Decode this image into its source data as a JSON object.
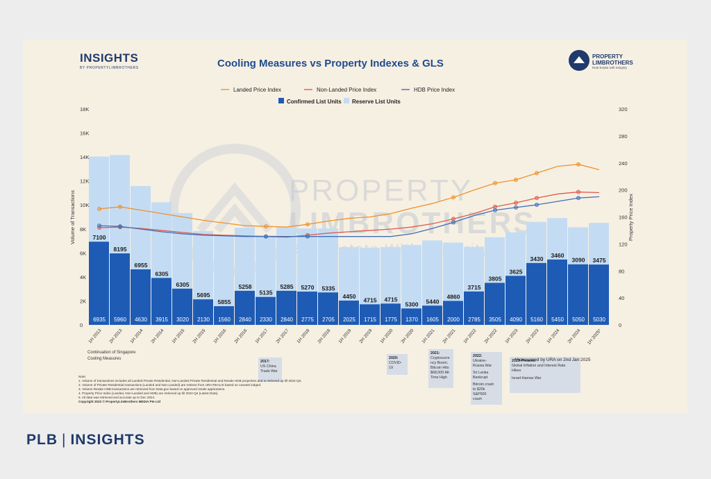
{
  "header": {
    "brand_left": "INSIGHTS",
    "brand_left_sub": "BY PROPERTYLIMBROTHERS",
    "brand_right_1": "PROPERTY",
    "brand_right_2": "LIMBROTHERS",
    "brand_right_3": "Real Estate with Integrity"
  },
  "watermark": {
    "line1": "PROPERTY",
    "line2": "LIMBROTHERS",
    "line3": "Real Estate With Integrity"
  },
  "footer": {
    "left": "PLB",
    "right": "INSIGHTS"
  },
  "announced_note": "*Announced by URA on 2nd Jan 2025",
  "continuation_note": [
    "Continuation of Singapore",
    "Cooling Measures"
  ],
  "annotations": [
    {
      "title": "2017:",
      "lines": [
        "US China",
        "Trade War"
      ]
    },
    {
      "title": "2020:",
      "lines": [
        "COVID-19"
      ]
    },
    {
      "title": "2021:",
      "lines": [
        "Cryptocurre",
        "ncy Boom;",
        "Bitcoin Hits",
        "$68,000 All-",
        "Time High"
      ]
    },
    {
      "title": "2022:",
      "lines": [
        "Ukraine-",
        "Russia War",
        "",
        "Sri Lanka",
        "Bankrupt",
        "",
        "Bitcoin crash",
        "to $20k",
        "S&P500",
        "crash"
      ]
    },
    {
      "title": "2023-Present:",
      "lines": [
        "Global Inflation and Interest Rate",
        "Hikes",
        "",
        "Israel-Hamas War"
      ]
    }
  ],
  "notes": [
    "Note:",
    "1. Volume of transactions includes all Landed Private Residential, Non-Landed Private Residential and Resale HDB properties and is retrieved up till 2024-Q3.",
    "2. Volume of Private Residential transactions (Landed and Non-Landed) are retrieve from URA REALIS based on caveats lodged.",
    "3. Volume Resale HDB transactions are retrieved from Data.gov based on approved resale applications.",
    "4. Property Price Index (Landed, Non-Landed and HDB) are retrieved up till 2024-Q4 (Latest Data).",
    "5. All data was retrieved and accurate up to Dec 2024."
  ],
  "copyright": "Copyright 2022 © PropertyLimBrothers MEDIA Pte Ltd",
  "colors": {
    "confirmed": "#1e5bb5",
    "reserve": "#c4dcf3",
    "landed": "#f0902a",
    "nonlanded": "#e05a4a",
    "hdb": "#3d6fb6"
  },
  "chart_data": {
    "type": "bar",
    "title": "Cooling Measures vs Property Indexes & GLS",
    "ylabel": "Volume of Transactions",
    "y2label": "Property Price Index",
    "ylim": [
      0,
      18000
    ],
    "y2lim": [
      0,
      320
    ],
    "yticks": [
      "0",
      "2K",
      "4K",
      "6K",
      "8K",
      "10K",
      "12K",
      "14K",
      "16K",
      "18K"
    ],
    "y2ticks": [
      "0",
      "40",
      "80",
      "120",
      "160",
      "200",
      "240",
      "280",
      "320"
    ],
    "categories": [
      "1H 2013",
      "2H 2013",
      "1H 2014",
      "2H 2014",
      "1H 2015",
      "2H 2015",
      "1H 2016",
      "2H 2016",
      "1H 2017",
      "2H 2017",
      "1H 2018",
      "2H 2018",
      "1H 2019",
      "2H 2019",
      "1H 2020",
      "2H 2020",
      "1H 2021",
      "2H 2021",
      "1H 2022",
      "2H 2022",
      "1H 2023",
      "2H 2023",
      "1H 2024",
      "2H 2024",
      "1H 2025*"
    ],
    "legend": {
      "landed": "Landed Price Index",
      "nonlanded": "Non-Landed Price Index",
      "hdb": "HDB Price Index",
      "confirmed": "Confirmed List Units",
      "reserve": "Reserve List Units"
    },
    "series": [
      {
        "name": "Confirmed List Units",
        "values": [
          6935,
          5960,
          4630,
          3915,
          3020,
          2130,
          1560,
          2840,
          2330,
          2840,
          2775,
          2705,
          2025,
          1715,
          1775,
          1370,
          1605,
          2000,
          2785,
          3505,
          4090,
          5160,
          5450,
          5050,
          5030
        ]
      },
      {
        "name": "Reserve List Units",
        "values": [
          7100,
          8195,
          6955,
          6305,
          6305,
          5695,
          5855,
          5258,
          5135,
          5285,
          5270,
          5335,
          4450,
          4715,
          4715,
          5300,
          5440,
          4860,
          3715,
          3805,
          3625,
          3430,
          3460,
          3090,
          3475
        ]
      },
      {
        "name": "Landed Price Index",
        "values": [
          172,
          175,
          170,
          165,
          160,
          155,
          151,
          147,
          146,
          145,
          149,
          154,
          158,
          160,
          165,
          173,
          180,
          189,
          200,
          210,
          215,
          225,
          235,
          238,
          230
        ]
      },
      {
        "name": "Non-Landed Price Index",
        "values": [
          144,
          145,
          143,
          140,
          137,
          134,
          133,
          132,
          131,
          130,
          133,
          136,
          138,
          140,
          142,
          145,
          150,
          157,
          165,
          175,
          181,
          188,
          194,
          197,
          196
        ]
      },
      {
        "name": "HDB Price Index",
        "values": [
          147,
          146,
          142,
          138,
          135,
          133,
          132,
          131,
          131,
          131,
          131,
          131,
          131,
          131,
          131,
          135,
          143,
          152,
          162,
          170,
          174,
          178,
          183,
          188,
          190
        ]
      }
    ],
    "grid": false,
    "legend_placement": "top"
  }
}
